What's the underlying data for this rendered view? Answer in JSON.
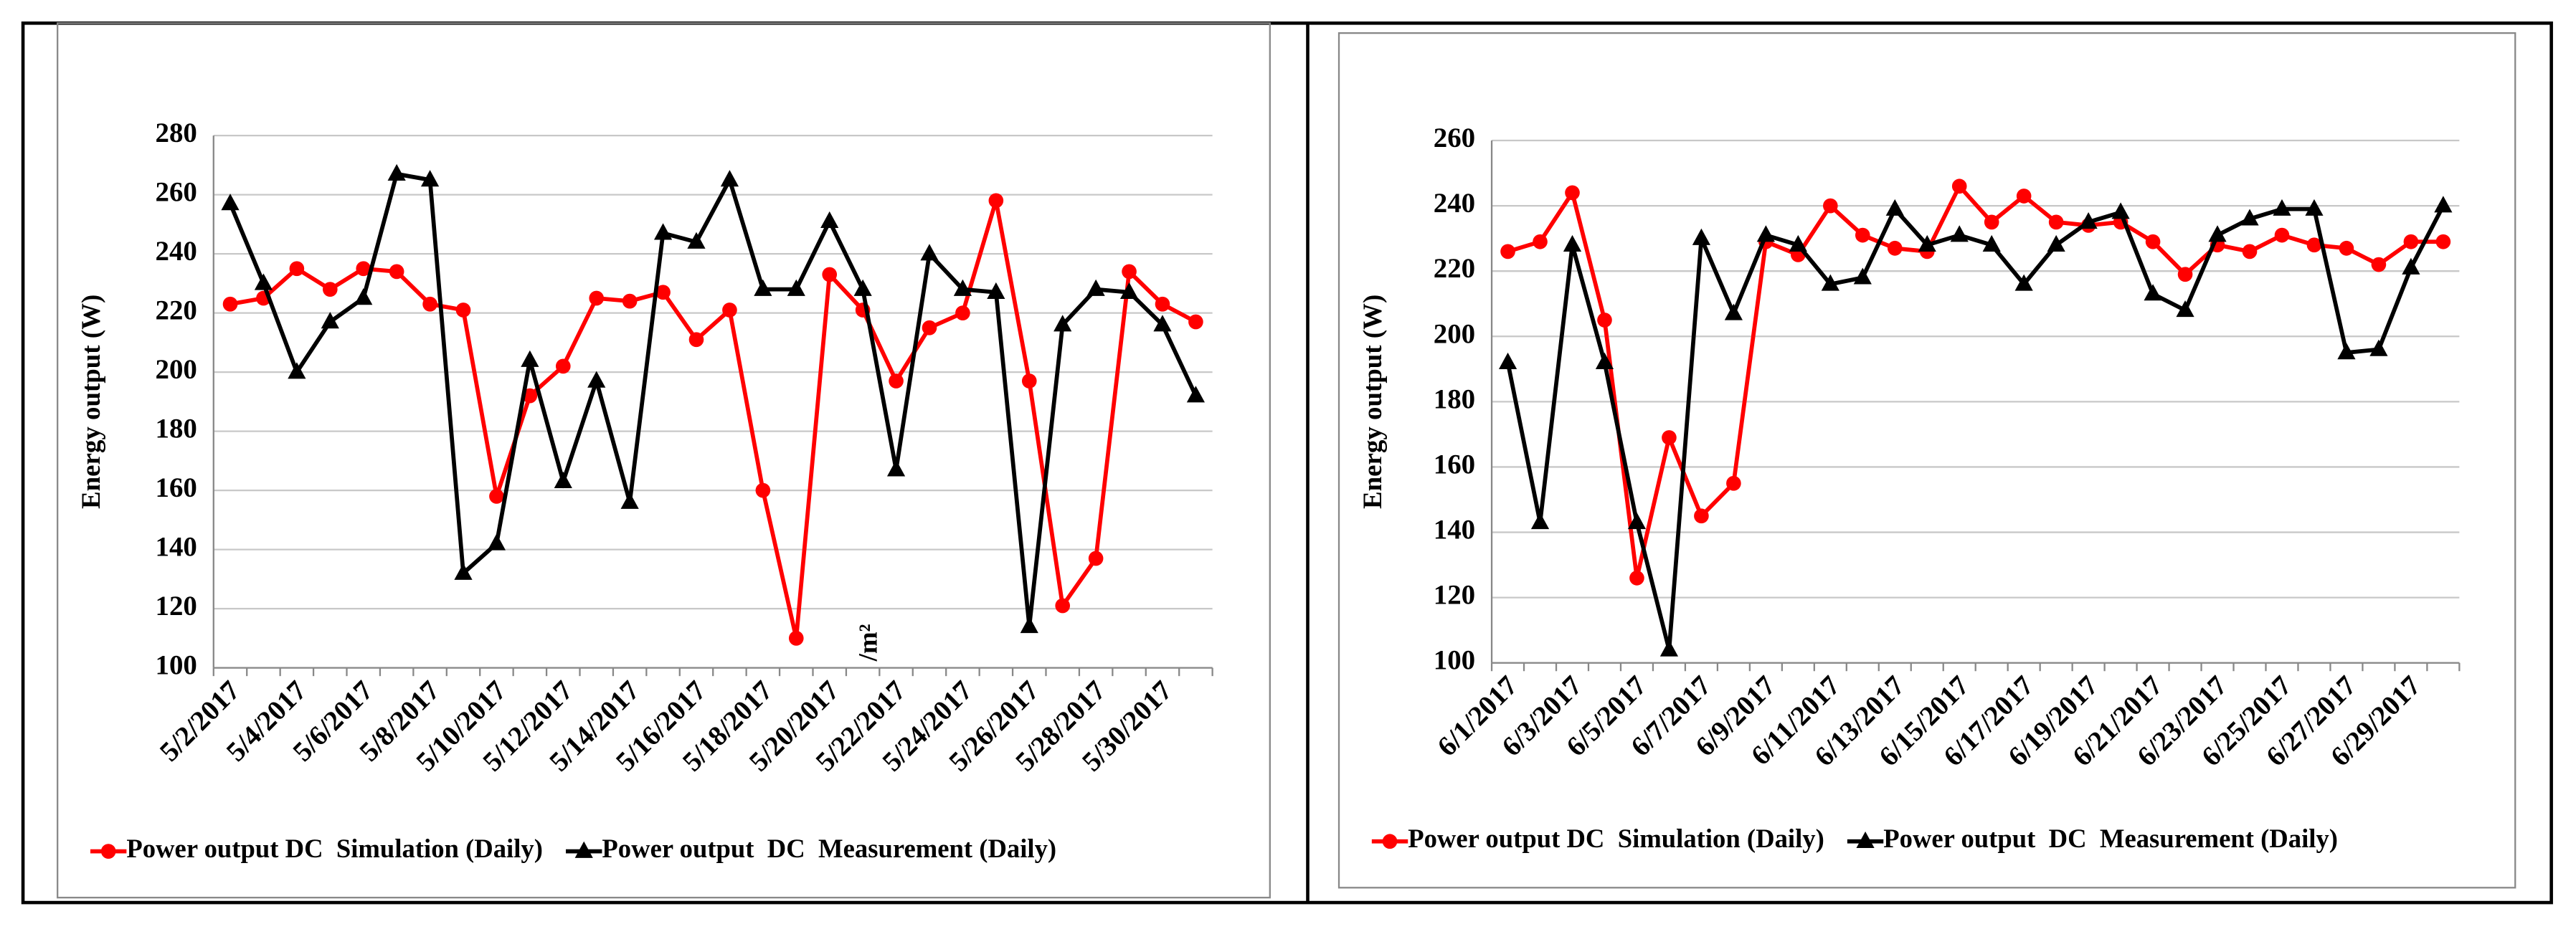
{
  "chart_data": [
    {
      "type": "line",
      "y_label": "Energy output (W)",
      "annotation": "/m²",
      "categories": [
        "5/2/2017",
        null,
        "5/4/2017",
        null,
        "5/6/2017",
        null,
        "5/8/2017",
        null,
        "5/10/2017",
        null,
        "5/12/2017",
        null,
        "5/14/2017",
        null,
        "5/16/2017",
        null,
        "5/18/2017",
        null,
        "5/20/2017",
        null,
        "5/22/2017",
        null,
        "5/24/2017",
        null,
        "5/26/2017",
        null,
        "5/28/2017",
        null,
        "5/30/2017",
        null
      ],
      "ylim": [
        100,
        280
      ],
      "yticks": [
        100,
        120,
        140,
        160,
        180,
        200,
        220,
        240,
        260,
        280
      ],
      "grid": true,
      "series": [
        {
          "name": "Power output DC  Simulation (Daily)",
          "color": "#ff0000",
          "marker": "circle",
          "values": [
            223,
            225,
            235,
            228,
            235,
            234,
            223,
            221,
            158,
            192,
            202,
            225,
            224,
            227,
            211,
            221,
            160,
            110,
            233,
            221,
            197,
            215,
            220,
            258,
            197,
            121,
            137,
            234,
            223,
            217
          ]
        },
        {
          "name": "Power output  DC  Measurement (Daily)",
          "color": "#000000",
          "marker": "triangle",
          "values": [
            257,
            230,
            200,
            217,
            225,
            267,
            265,
            132,
            142,
            204,
            163,
            197,
            156,
            247,
            244,
            265,
            228,
            228,
            251,
            228,
            167,
            240,
            228,
            227,
            114,
            216,
            228,
            227,
            216,
            192
          ]
        }
      ]
    },
    {
      "type": "line",
      "y_label": "Energy output (W)",
      "categories": [
        "6/1/2017",
        null,
        "6/3/2017",
        null,
        "6/5/2017",
        null,
        "6/7/2017",
        null,
        "6/9/2017",
        null,
        "6/11/2017",
        null,
        "6/13/2017",
        null,
        "6/15/2017",
        null,
        "6/17/2017",
        null,
        "6/19/2017",
        null,
        "6/21/2017",
        null,
        "6/23/2017",
        null,
        "6/25/2017",
        null,
        "6/27/2017",
        null,
        "6/29/2017",
        null
      ],
      "ylim": [
        100,
        260
      ],
      "yticks": [
        100,
        120,
        140,
        160,
        180,
        200,
        220,
        240,
        260
      ],
      "grid": true,
      "series": [
        {
          "name": "Power output DC  Simulation (Daily)",
          "color": "#ff0000",
          "marker": "circle",
          "values": [
            226,
            229,
            244,
            205,
            126,
            169,
            145,
            155,
            229,
            225,
            240,
            231,
            227,
            226,
            246,
            235,
            243,
            235,
            234,
            235,
            229,
            219,
            228,
            226,
            231,
            228,
            227,
            222,
            229,
            229
          ]
        },
        {
          "name": "Power output  DC  Measurement (Daily)",
          "color": "#000000",
          "marker": "triangle",
          "values": [
            192,
            143,
            228,
            192,
            143,
            104,
            230,
            207,
            231,
            228,
            216,
            218,
            239,
            228,
            231,
            228,
            216,
            228,
            235,
            238,
            213,
            208,
            231,
            236,
            239,
            239,
            195,
            196,
            221,
            240
          ]
        }
      ]
    }
  ]
}
